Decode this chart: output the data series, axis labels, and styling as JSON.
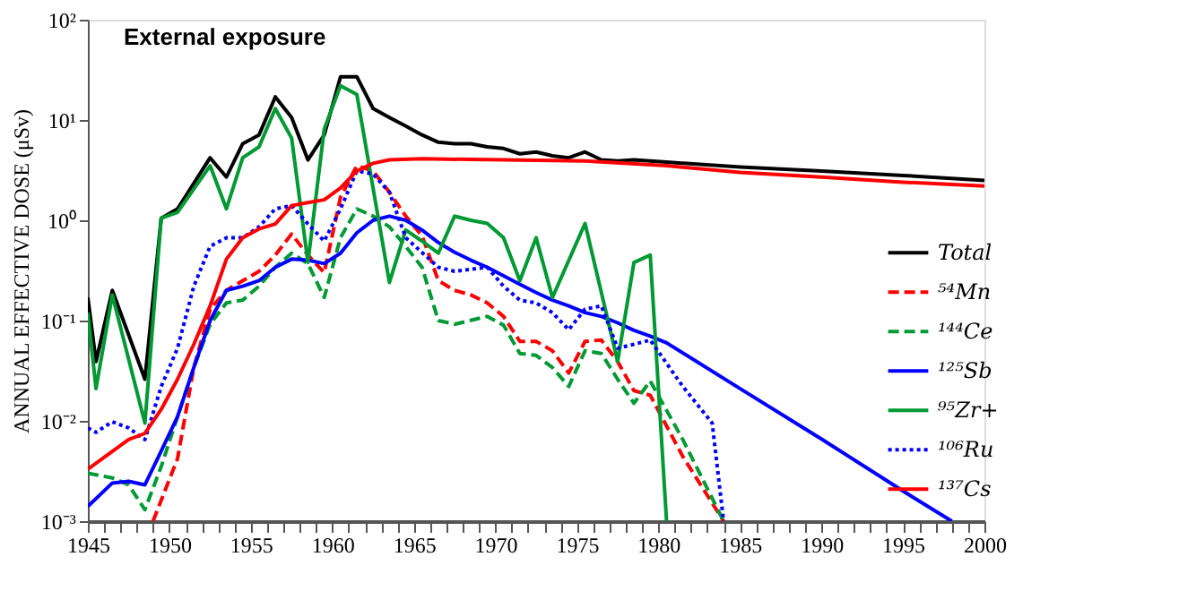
{
  "chart_data": {
    "type": "line",
    "title": "External exposure",
    "ylabel": "ANNUAL EFFECTIVE DOSE (μSv)",
    "log": "y",
    "grid": false,
    "legend": "right",
    "marker": "none",
    "xlim": [
      1945,
      2000
    ],
    "ylim": [
      0.001,
      100
    ],
    "xticks": [
      1945,
      {
        "value": 1946,
        "label": null
      },
      {
        "value": 1947,
        "label": null
      },
      {
        "value": 1948,
        "label": null
      },
      {
        "value": 1949,
        "label": null
      },
      1950,
      {
        "value": 1951,
        "label": null
      },
      {
        "value": 1952,
        "label": null
      },
      {
        "value": 1953,
        "label": null
      },
      {
        "value": 1954,
        "label": null
      },
      1955,
      {
        "value": 1956,
        "label": null
      },
      {
        "value": 1957,
        "label": null
      },
      {
        "value": 1958,
        "label": null
      },
      {
        "value": 1959,
        "label": null
      },
      1960,
      {
        "value": 1961,
        "label": null
      },
      {
        "value": 1962,
        "label": null
      },
      {
        "value": 1963,
        "label": null
      },
      {
        "value": 1964,
        "label": null
      },
      1965,
      {
        "value": 1966,
        "label": null
      },
      {
        "value": 1967,
        "label": null
      },
      {
        "value": 1968,
        "label": null
      },
      {
        "value": 1969,
        "label": null
      },
      1970,
      {
        "value": 1971,
        "label": null
      },
      {
        "value": 1972,
        "label": null
      },
      {
        "value": 1973,
        "label": null
      },
      {
        "value": 1974,
        "label": null
      },
      1975,
      {
        "value": 1976,
        "label": null
      },
      {
        "value": 1977,
        "label": null
      },
      {
        "value": 1978,
        "label": null
      },
      {
        "value": 1979,
        "label": null
      },
      1980,
      {
        "value": 1981,
        "label": null
      },
      {
        "value": 1982,
        "label": null
      },
      {
        "value": 1983,
        "label": null
      },
      {
        "value": 1984,
        "label": null
      },
      1985,
      {
        "value": 1986,
        "label": null
      },
      {
        "value": 1987,
        "label": null
      },
      {
        "value": 1988,
        "label": null
      },
      {
        "value": 1989,
        "label": null
      },
      1990,
      {
        "value": 1991,
        "label": null
      },
      {
        "value": 1992,
        "label": null
      },
      {
        "value": 1993,
        "label": null
      },
      {
        "value": 1994,
        "label": null
      },
      1995,
      {
        "value": 1996,
        "label": null
      },
      {
        "value": 1997,
        "label": null
      },
      {
        "value": 1998,
        "label": null
      },
      {
        "value": 1999,
        "label": null
      },
      2000
    ],
    "yticks": [
      {
        "value": 0.001,
        "label": "10⁻³"
      },
      {
        "value": 0.01,
        "label": "10⁻²"
      },
      {
        "value": 0.1,
        "label": "10⁻¹"
      },
      {
        "value": 1,
        "label": "10⁰"
      },
      {
        "value": 10,
        "label": "10¹"
      },
      {
        "value": 100,
        "label": "10²"
      }
    ],
    "series": [
      {
        "name": "Total",
        "color": "#000000",
        "line_style": "solid",
        "x": [
          1945,
          1945.5,
          1946.5,
          1948.5,
          1949.5,
          1950.5,
          1952.5,
          1953.5,
          1954.5,
          1955.5,
          1956.5,
          1957.5,
          1958.5,
          1959.5,
          1960.5,
          1961.5,
          1962.5,
          1963.5,
          1964.5,
          1965.5,
          1966.5,
          1967.5,
          1968.5,
          1969.5,
          1970.5,
          1971.5,
          1972.5,
          1973.5,
          1974.5,
          1975.5,
          1976.5,
          1977.5,
          1978.5,
          1979.5,
          1980.5,
          1985,
          1990,
          1995,
          2000
        ],
        "values": [
          0.17,
          0.039,
          0.2,
          0.026,
          1.05,
          1.3,
          4.2,
          2.7,
          5.8,
          7.1,
          17,
          10.6,
          4,
          7.1,
          27,
          27,
          13,
          10.6,
          8.7,
          7.1,
          6,
          5.8,
          5.8,
          5.4,
          5.2,
          4.6,
          4.8,
          4.4,
          4.2,
          4.8,
          4,
          3.9,
          4,
          3.9,
          3.8,
          3.4,
          3.1,
          2.8,
          2.5
        ]
      },
      {
        "name": "⁵⁴Mn",
        "color": "#ff0000",
        "line_style": "dashed",
        "x": [
          1949,
          1950.5,
          1951.5,
          1952.5,
          1953.5,
          1954.5,
          1955.5,
          1956.5,
          1957.5,
          1958.5,
          1959.5,
          1960.5,
          1961.5,
          1962.5,
          1963.5,
          1964.5,
          1965.5,
          1966.5,
          1967.5,
          1968.5,
          1969.5,
          1970.5,
          1971.5,
          1972.5,
          1973.5,
          1974.5,
          1975.5,
          1976.5,
          1977.5,
          1978.5,
          1979.5,
          1981.5,
          1984
        ],
        "values": [
          0.001,
          0.0042,
          0.034,
          0.13,
          0.2,
          0.25,
          0.31,
          0.45,
          0.73,
          0.45,
          0.3,
          1.7,
          3.5,
          3.1,
          1.9,
          1.1,
          0.7,
          0.25,
          0.2,
          0.18,
          0.15,
          0.11,
          0.062,
          0.062,
          0.05,
          0.03,
          0.062,
          0.064,
          0.039,
          0.02,
          0.018,
          0.0044,
          0.001
        ]
      },
      {
        "name": "¹⁴⁴Ce",
        "color": "#009933",
        "line_style": "dashed",
        "x": [
          1945,
          1946.5,
          1947.5,
          1948.5,
          1949.5,
          1950.5,
          1951.5,
          1952.5,
          1953.5,
          1954.5,
          1955.5,
          1956.5,
          1957.5,
          1958.5,
          1959.5,
          1960.5,
          1961.5,
          1962.5,
          1963.5,
          1964.5,
          1965.5,
          1966.5,
          1967.5,
          1969.5,
          1970.5,
          1971.5,
          1972.5,
          1973.5,
          1974.5,
          1975.5,
          1976.5,
          1977.5,
          1978.5,
          1979.5,
          1981.5,
          1984
        ],
        "values": [
          0.003,
          0.0027,
          0.0023,
          0.0013,
          0.0035,
          0.011,
          0.034,
          0.092,
          0.15,
          0.16,
          0.22,
          0.34,
          0.47,
          0.37,
          0.17,
          0.67,
          1.3,
          1.1,
          0.86,
          0.55,
          0.34,
          0.1,
          0.092,
          0.11,
          0.09,
          0.047,
          0.045,
          0.034,
          0.022,
          0.05,
          0.047,
          0.026,
          0.015,
          0.025,
          0.0065,
          0.001
        ]
      },
      {
        "name": "¹²⁵Sb",
        "color": "#0000ff",
        "line_style": "solid",
        "x": [
          1945,
          1946.5,
          1947.5,
          1948.5,
          1949.5,
          1950.5,
          1951.5,
          1952.5,
          1953.5,
          1954.5,
          1955.5,
          1956.5,
          1957.5,
          1958.5,
          1959.5,
          1960.5,
          1961.5,
          1962.5,
          1963.5,
          1964.5,
          1965.5,
          1966.5,
          1967.5,
          1968.5,
          1969.5,
          1970.5,
          1971.5,
          1972.5,
          1973.5,
          1974.5,
          1975.5,
          1976.5,
          1977.5,
          1978.5,
          1979.5,
          1980.5,
          1985,
          1990,
          1995,
          1998
        ],
        "values": [
          0.0014,
          0.0024,
          0.0025,
          0.0023,
          0.005,
          0.011,
          0.034,
          0.1,
          0.2,
          0.22,
          0.25,
          0.34,
          0.41,
          0.4,
          0.37,
          0.47,
          0.75,
          1,
          1.1,
          1,
          0.8,
          0.6,
          0.48,
          0.4,
          0.34,
          0.28,
          0.23,
          0.19,
          0.16,
          0.14,
          0.12,
          0.11,
          0.095,
          0.08,
          0.07,
          0.06,
          0.021,
          0.0066,
          0.002,
          0.001
        ]
      },
      {
        "name": "⁹⁵Zr+",
        "color": "#009933",
        "line_style": "solid",
        "x": [
          1945,
          1945.5,
          1946.5,
          1948.5,
          1949.5,
          1950.5,
          1952.5,
          1953.5,
          1954.5,
          1955.5,
          1956.5,
          1957.5,
          1958.5,
          1959.5,
          1960.5,
          1961.5,
          1963.5,
          1964.5,
          1965.5,
          1966.5,
          1967.5,
          1968.5,
          1969.5,
          1970.5,
          1971.5,
          1972.5,
          1973.5,
          1975.5,
          1977.5,
          1978.5,
          1979.5,
          1980.5
        ],
        "values": [
          0.12,
          0.021,
          0.18,
          0.0095,
          1.05,
          1.2,
          3.5,
          1.3,
          4.2,
          5.4,
          13,
          6.6,
          0.38,
          8.1,
          22,
          18,
          0.24,
          0.8,
          0.62,
          0.47,
          1.1,
          1,
          0.93,
          0.67,
          0.25,
          0.67,
          0.17,
          0.93,
          0.039,
          0.38,
          0.45,
          0.001
        ]
      },
      {
        "name": "¹⁰⁶Ru",
        "color": "#0000ff",
        "line_style": "dotted",
        "x": [
          1945,
          1945.5,
          1946.5,
          1947.5,
          1948.5,
          1949.5,
          1950.5,
          1951.5,
          1952.5,
          1953.5,
          1954.5,
          1955.5,
          1956.5,
          1957.5,
          1958.5,
          1959.5,
          1960.5,
          1961.5,
          1962.5,
          1963.5,
          1964.5,
          1966.5,
          1967.5,
          1969.5,
          1970.5,
          1971.5,
          1972.5,
          1973.5,
          1974.5,
          1975.5,
          1976.5,
          1977.5,
          1978.5,
          1979.5,
          1981.5,
          1983.3,
          1984
        ],
        "values": [
          0.0085,
          0.0077,
          0.0098,
          0.0085,
          0.0065,
          0.022,
          0.053,
          0.22,
          0.55,
          0.67,
          0.67,
          0.86,
          1.3,
          1.4,
          0.92,
          0.62,
          1.3,
          3.1,
          2.9,
          1.9,
          0.67,
          0.34,
          0.31,
          0.34,
          0.22,
          0.16,
          0.15,
          0.12,
          0.081,
          0.13,
          0.14,
          0.053,
          0.058,
          0.064,
          0.022,
          0.0095,
          0.001
        ]
      },
      {
        "name": "¹³⁷Cs",
        "color": "#ff0000",
        "line_style": "solid",
        "x": [
          1945,
          1947.5,
          1948.5,
          1949.5,
          1950.5,
          1951.5,
          1952.5,
          1953.5,
          1954.5,
          1955.5,
          1956.5,
          1957.5,
          1958.5,
          1959.5,
          1960.5,
          1961.5,
          1962.5,
          1963.5,
          1965.5,
          1970.5,
          1975.5,
          1980.5,
          1985,
          1990,
          1995,
          2000
        ],
        "values": [
          0.0033,
          0.0065,
          0.0075,
          0.013,
          0.026,
          0.058,
          0.14,
          0.41,
          0.67,
          0.82,
          0.92,
          1.4,
          1.5,
          1.6,
          2.1,
          3.1,
          3.7,
          4,
          4.1,
          4,
          3.9,
          3.5,
          3.0,
          2.7,
          2.4,
          2.2
        ]
      }
    ]
  }
}
